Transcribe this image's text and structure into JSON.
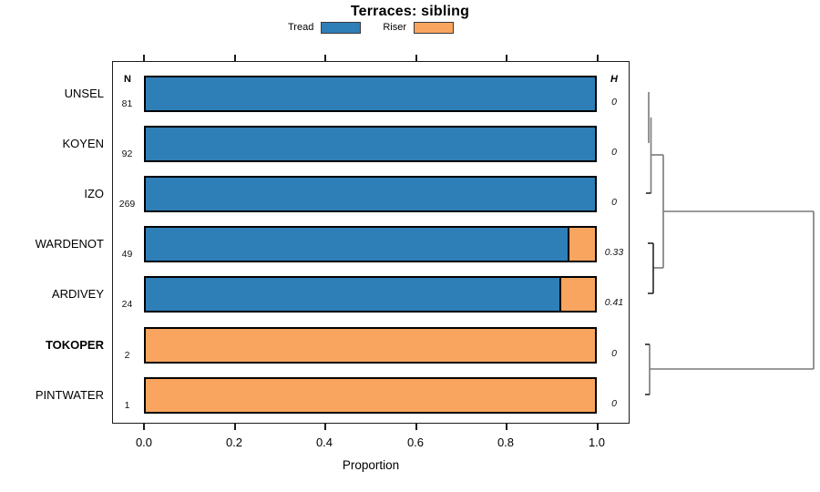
{
  "title": "Terraces: sibling",
  "legend": {
    "items": [
      {
        "label": "Tread",
        "color": "#2E7EB8"
      },
      {
        "label": "Riser",
        "color": "#FAA55F"
      }
    ]
  },
  "columns": {
    "n_header": "N",
    "h_header": "H"
  },
  "rows": [
    {
      "label": "UNSEL",
      "n": "81",
      "h": "0",
      "tread": 1.0,
      "riser": 0.0,
      "bold": false
    },
    {
      "label": "KOYEN",
      "n": "92",
      "h": "0",
      "tread": 1.0,
      "riser": 0.0,
      "bold": false
    },
    {
      "label": "IZO",
      "n": "269",
      "h": "0",
      "tread": 1.0,
      "riser": 0.0,
      "bold": false
    },
    {
      "label": "WARDENOT",
      "n": "49",
      "h": "0.33",
      "tread": 0.94,
      "riser": 0.06,
      "bold": false
    },
    {
      "label": "ARDIVEY",
      "n": "24",
      "h": "0.41",
      "tread": 0.92,
      "riser": 0.08,
      "bold": false
    },
    {
      "label": "TOKOPER",
      "n": "2",
      "h": "0",
      "tread": 0.0,
      "riser": 1.0,
      "bold": true
    },
    {
      "label": "PINTWATER",
      "n": "1",
      "h": "0",
      "tread": 0.0,
      "riser": 1.0,
      "bold": false
    }
  ],
  "x_axis": {
    "label": "Proportion",
    "ticks": [
      "0.0",
      "0.2",
      "0.4",
      "0.6",
      "0.8",
      "1.0"
    ]
  },
  "chart_data": {
    "type": "bar",
    "orientation": "horizontal-stacked",
    "title": "Terraces: sibling",
    "xlabel": "Proportion",
    "xlim": [
      0,
      1
    ],
    "xticks": [
      0.0,
      0.2,
      0.4,
      0.6,
      0.8,
      1.0
    ],
    "grid": false,
    "legend_position": "top-center",
    "categories": [
      "UNSEL",
      "KOYEN",
      "IZO",
      "WARDENOT",
      "ARDIVEY",
      "TOKOPER",
      "PINTWATER"
    ],
    "series": [
      {
        "name": "Tread",
        "color": "#2E7EB8",
        "values": [
          1.0,
          1.0,
          1.0,
          0.94,
          0.92,
          0.0,
          0.0
        ]
      },
      {
        "name": "Riser",
        "color": "#FAA55F",
        "values": [
          0.0,
          0.0,
          0.0,
          0.06,
          0.08,
          1.0,
          1.0
        ]
      }
    ],
    "annotations": {
      "N": [
        81,
        92,
        269,
        49,
        24,
        2,
        1
      ],
      "H": [
        0,
        0,
        0,
        0.33,
        0.41,
        0,
        0
      ]
    },
    "bold_categories": [
      "TOKOPER"
    ],
    "dendrogram": {
      "side": "right",
      "merges": [
        {
          "members": [
            "UNSEL",
            "KOYEN"
          ],
          "relative_height": "near-zero"
        },
        {
          "members": [
            "UNSEL",
            "KOYEN",
            "IZO"
          ],
          "relative_height": "near-zero"
        },
        {
          "members": [
            "WARDENOT",
            "ARDIVEY"
          ],
          "relative_height": "small"
        },
        {
          "members": [
            "UNSEL",
            "KOYEN",
            "IZO",
            "WARDENOT",
            "ARDIVEY"
          ],
          "relative_height": "small-medium"
        },
        {
          "members": [
            "TOKOPER",
            "PINTWATER"
          ],
          "relative_height": "near-zero"
        },
        {
          "members": [
            "UNSEL",
            "KOYEN",
            "IZO",
            "WARDENOT",
            "ARDIVEY",
            "TOKOPER",
            "PINTWATER"
          ],
          "relative_height": "large"
        }
      ]
    }
  }
}
